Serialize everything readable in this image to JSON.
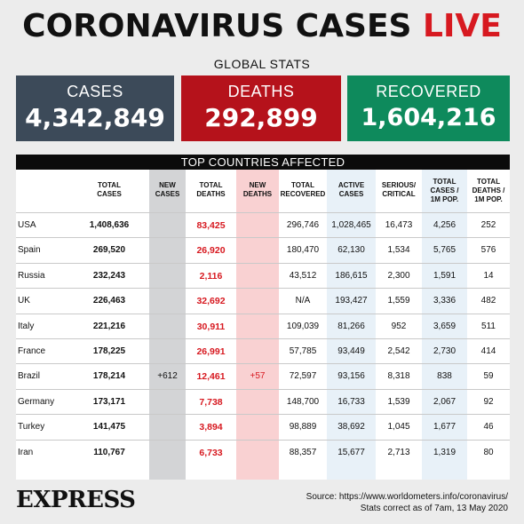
{
  "title": {
    "main": "CORONAVIRUS CASES",
    "live": "LIVE"
  },
  "subtitle": "GLOBAL STATS",
  "stats": {
    "cases": {
      "label": "CASES",
      "value": "4,342,849",
      "color": "#3c4a59"
    },
    "deaths": {
      "label": "DEATHS",
      "value": "292,899",
      "color": "#b5121b"
    },
    "recovered": {
      "label": "RECOVERED",
      "value": "1,604,216",
      "color": "#0e8a5c"
    }
  },
  "table": {
    "heading": "TOP COUNTRIES AFFECTED",
    "columns": [
      [
        "TOTAL",
        "CASES"
      ],
      [
        "NEW",
        "CASES"
      ],
      [
        "TOTAL",
        "DEATHS"
      ],
      [
        "NEW",
        "DEATHS"
      ],
      [
        "TOTAL",
        "RECOVERED"
      ],
      [
        "ACTIVE",
        "CASES"
      ],
      [
        "SERIOUS/",
        "CRITICAL"
      ],
      [
        "TOTAL",
        "CASES /",
        "1M POP."
      ],
      [
        "TOTAL",
        "DEATHS /",
        "1M POP."
      ]
    ],
    "rows": [
      {
        "country": "USA",
        "total_cases": "1,408,636",
        "new_cases": "",
        "total_deaths": "83,425",
        "new_deaths": "",
        "total_recovered": "296,746",
        "active_cases": "1,028,465",
        "serious_critical": "16,473",
        "cases_per_1m": "4,256",
        "deaths_per_1m": "252"
      },
      {
        "country": "Spain",
        "total_cases": "269,520",
        "new_cases": "",
        "total_deaths": "26,920",
        "new_deaths": "",
        "total_recovered": "180,470",
        "active_cases": "62,130",
        "serious_critical": "1,534",
        "cases_per_1m": "5,765",
        "deaths_per_1m": "576"
      },
      {
        "country": "Russia",
        "total_cases": "232,243",
        "new_cases": "",
        "total_deaths": "2,116",
        "new_deaths": "",
        "total_recovered": "43,512",
        "active_cases": "186,615",
        "serious_critical": "2,300",
        "cases_per_1m": "1,591",
        "deaths_per_1m": "14"
      },
      {
        "country": "UK",
        "total_cases": "226,463",
        "new_cases": "",
        "total_deaths": "32,692",
        "new_deaths": "",
        "total_recovered": "N/A",
        "active_cases": "193,427",
        "serious_critical": "1,559",
        "cases_per_1m": "3,336",
        "deaths_per_1m": "482"
      },
      {
        "country": "Italy",
        "total_cases": "221,216",
        "new_cases": "",
        "total_deaths": "30,911",
        "new_deaths": "",
        "total_recovered": "109,039",
        "active_cases": "81,266",
        "serious_critical": "952",
        "cases_per_1m": "3,659",
        "deaths_per_1m": "511"
      },
      {
        "country": "France",
        "total_cases": "178,225",
        "new_cases": "",
        "total_deaths": "26,991",
        "new_deaths": "",
        "total_recovered": "57,785",
        "active_cases": "93,449",
        "serious_critical": "2,542",
        "cases_per_1m": "2,730",
        "deaths_per_1m": "414"
      },
      {
        "country": "Brazil",
        "total_cases": "178,214",
        "new_cases": "+612",
        "total_deaths": "12,461",
        "new_deaths": "+57",
        "total_recovered": "72,597",
        "active_cases": "93,156",
        "serious_critical": "8,318",
        "cases_per_1m": "838",
        "deaths_per_1m": "59"
      },
      {
        "country": "Germany",
        "total_cases": "173,171",
        "new_cases": "",
        "total_deaths": "7,738",
        "new_deaths": "",
        "total_recovered": "148,700",
        "active_cases": "16,733",
        "serious_critical": "1,539",
        "cases_per_1m": "2,067",
        "deaths_per_1m": "92"
      },
      {
        "country": "Turkey",
        "total_cases": "141,475",
        "new_cases": "",
        "total_deaths": "3,894",
        "new_deaths": "",
        "total_recovered": "98,889",
        "active_cases": "38,692",
        "serious_critical": "1,045",
        "cases_per_1m": "1,677",
        "deaths_per_1m": "46"
      },
      {
        "country": "Iran",
        "total_cases": "110,767",
        "new_cases": "",
        "total_deaths": "6,733",
        "new_deaths": "",
        "total_recovered": "88,357",
        "active_cases": "15,677",
        "serious_critical": "2,713",
        "cases_per_1m": "1,319",
        "deaths_per_1m": "80"
      }
    ]
  },
  "footer": {
    "logo": "EXPRESS",
    "source": "Source: https://www.worldometers.info/coronavirus/",
    "note": "Stats correct as of 7am, 13 May 2020"
  }
}
